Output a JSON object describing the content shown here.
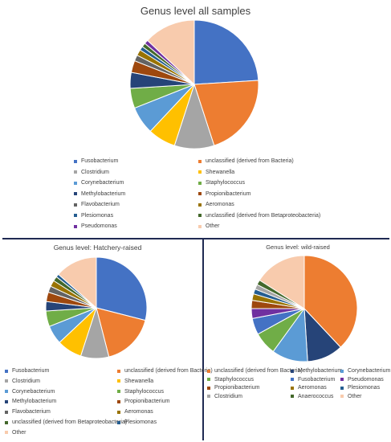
{
  "chart_data": [
    {
      "type": "pie",
      "title": "Genus level all samples",
      "legend_position": "bottom",
      "slices": [
        {
          "label": "Fusobacterium",
          "value": 24,
          "color": "#4472c4"
        },
        {
          "label": "unclassified (derived from Bacteria)",
          "value": 21,
          "color": "#ed7d31"
        },
        {
          "label": "Clostridium",
          "value": 10,
          "color": "#a5a5a5"
        },
        {
          "label": "Shewanella",
          "value": 7,
          "color": "#ffc000"
        },
        {
          "label": "Corynebacterium",
          "value": 7,
          "color": "#5b9bd5"
        },
        {
          "label": "Staphylococcus",
          "value": 5,
          "color": "#70ad47"
        },
        {
          "label": "Methylobacterium",
          "value": 4,
          "color": "#264478"
        },
        {
          "label": "Propionibacterium",
          "value": 3,
          "color": "#9e480e"
        },
        {
          "label": "Flavobacterium",
          "value": 1.5,
          "color": "#636363"
        },
        {
          "label": "Aeromonas",
          "value": 1.5,
          "color": "#997300"
        },
        {
          "label": "Plesiomonas",
          "value": 1,
          "color": "#255e91"
        },
        {
          "label": "unclassified (derived from Betaproteobacteria)",
          "value": 1,
          "color": "#43682b"
        },
        {
          "label": "Pseudomonas",
          "value": 1,
          "color": "#7030a0"
        },
        {
          "label": "Other",
          "value": 13,
          "color": "#f8cbad"
        }
      ]
    },
    {
      "type": "pie",
      "title": "Genus level: Hatchery-raised",
      "legend_position": "bottom",
      "slices": [
        {
          "label": "Fusobacterium",
          "value": 29,
          "color": "#4472c4"
        },
        {
          "label": "unclassified (derived from Bacteria)",
          "value": 17,
          "color": "#ed7d31"
        },
        {
          "label": "Clostridium",
          "value": 9,
          "color": "#a5a5a5"
        },
        {
          "label": "Shewanella",
          "value": 8,
          "color": "#ffc000"
        },
        {
          "label": "Corynebacterium",
          "value": 6,
          "color": "#5b9bd5"
        },
        {
          "label": "Staphylococcus",
          "value": 5,
          "color": "#70ad47"
        },
        {
          "label": "Methylobacterium",
          "value": 3,
          "color": "#264478"
        },
        {
          "label": "Propionibacterium",
          "value": 3,
          "color": "#9e480e"
        },
        {
          "label": "Flavobacterium",
          "value": 2,
          "color": "#636363"
        },
        {
          "label": "Aeromonas",
          "value": 2,
          "color": "#997300"
        },
        {
          "label": "unclassified (derived from Betaproteobacteria)",
          "value": 1.5,
          "color": "#43682b"
        },
        {
          "label": "Plesiomonas",
          "value": 1,
          "color": "#255e91"
        },
        {
          "label": "Other",
          "value": 13.5,
          "color": "#f8cbad"
        }
      ]
    },
    {
      "type": "pie",
      "title": "Genus level: wild-raised",
      "legend_position": "bottom",
      "slices": [
        {
          "label": "unclassified (derived from Bacteria)",
          "value": 38,
          "color": "#ed7d31"
        },
        {
          "label": "Methylobacterium",
          "value": 11,
          "color": "#264478"
        },
        {
          "label": "Corynebacterium",
          "value": 11,
          "color": "#5b9bd5"
        },
        {
          "label": "Staphylococcus",
          "value": 7,
          "color": "#70ad47"
        },
        {
          "label": "Fusobacterium",
          "value": 5,
          "color": "#4472c4"
        },
        {
          "label": "Pseudomonas",
          "value": 3,
          "color": "#7030a0"
        },
        {
          "label": "Propionibacterium",
          "value": 2.5,
          "color": "#9e480e"
        },
        {
          "label": "Aeromonas",
          "value": 2,
          "color": "#997300"
        },
        {
          "label": "Plesiomonas",
          "value": 1.5,
          "color": "#255e91"
        },
        {
          "label": "Clostridium",
          "value": 1.5,
          "color": "#a5a5a5"
        },
        {
          "label": "Anaerococcus",
          "value": 1.5,
          "color": "#43682b"
        },
        {
          "label": "Other",
          "value": 16,
          "color": "#f8cbad"
        }
      ]
    }
  ]
}
